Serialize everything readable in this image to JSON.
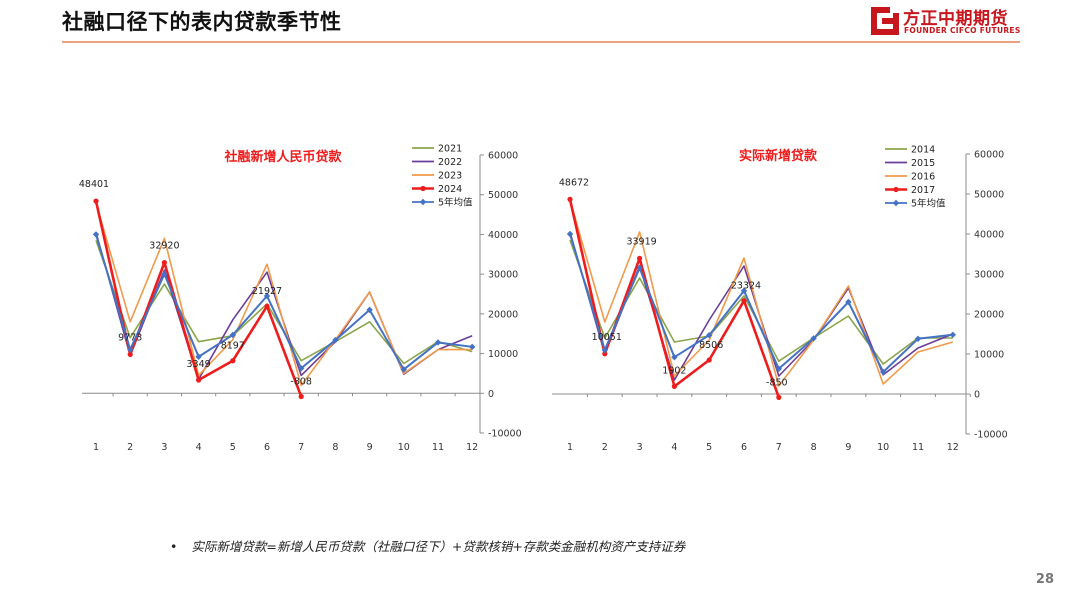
{
  "header": {
    "title": "社融口径下的表内贷款季节性",
    "logo_cn": "方正中期期货",
    "logo_en": "FOUNDER CIFCO FUTURES"
  },
  "chart_data": [
    {
      "type": "line",
      "title": "社融新增人民币贷款",
      "x": [
        1,
        2,
        3,
        4,
        5,
        6,
        7,
        8,
        9,
        10,
        11,
        12
      ],
      "ylim": [
        -10000,
        60000
      ],
      "yticks": [
        -10000,
        0,
        10000,
        20000,
        30000,
        40000,
        50000,
        60000
      ],
      "axis_position": "right",
      "legend_placement": "top-right",
      "grid": false,
      "series": [
        {
          "name": "2021",
          "color": "#8aa54a",
          "values": [
            38500,
            14000,
            27500,
            13000,
            14500,
            22500,
            8200,
            13000,
            18000,
            7500,
            13000,
            10500
          ]
        },
        {
          "name": "2022",
          "color": "#6b3d9a",
          "values": [
            40500,
            9500,
            31000,
            3500,
            18500,
            30500,
            4500,
            13000,
            25500,
            4800,
            11000,
            14500
          ]
        },
        {
          "name": "2023",
          "color": "#f29a4a",
          "values": [
            48000,
            18000,
            39000,
            4500,
            13500,
            32500,
            2000,
            13500,
            25500,
            5000,
            11000,
            11000
          ]
        },
        {
          "name": "2024",
          "color": "#ee1c1c",
          "values": [
            48401,
            9773,
            32920,
            3349,
            8197,
            21927,
            -808,
            null,
            null,
            null,
            null,
            null
          ]
        },
        {
          "name": "5年均值",
          "color": "#4472c4",
          "values": [
            40000,
            11000,
            30000,
            9200,
            14700,
            24500,
            6300,
            13400,
            21000,
            6000,
            12800,
            11700
          ]
        }
      ],
      "data_labels": [
        {
          "x": 1,
          "text": "48401"
        },
        {
          "x": 2,
          "text": "9773"
        },
        {
          "x": 3,
          "text": "32920"
        },
        {
          "x": 4,
          "text": "3349"
        },
        {
          "x": 5,
          "text": "8197"
        },
        {
          "x": 6,
          "text": "21927"
        },
        {
          "x": 7,
          "text": "-808"
        }
      ]
    },
    {
      "type": "line",
      "title": "实际新增贷款",
      "x": [
        1,
        2,
        3,
        4,
        5,
        6,
        7,
        8,
        9,
        10,
        11,
        12
      ],
      "ylim": [
        -10000,
        60000
      ],
      "yticks": [
        -10000,
        0,
        10000,
        20000,
        30000,
        40000,
        50000,
        60000
      ],
      "axis_position": "right",
      "legend_placement": "top-right",
      "grid": false,
      "series": [
        {
          "name": "2014",
          "color": "#8aa54a",
          "values": [
            38500,
            14000,
            29000,
            13000,
            14500,
            24500,
            8200,
            14000,
            19500,
            7500,
            14000,
            14000
          ]
        },
        {
          "name": "2015",
          "color": "#6b3d9a",
          "values": [
            40500,
            10000,
            32000,
            3500,
            18500,
            32000,
            4500,
            13500,
            26500,
            4800,
            11500,
            15000
          ]
        },
        {
          "name": "2016",
          "color": "#f29a4a",
          "values": [
            48500,
            18000,
            40500,
            4500,
            13500,
            34000,
            2000,
            13500,
            27000,
            2500,
            10500,
            13000
          ]
        },
        {
          "name": "2017",
          "color": "#ee1c1c",
          "values": [
            48672,
            10051,
            33919,
            1902,
            8506,
            23324,
            -850,
            null,
            null,
            null,
            null,
            null
          ]
        },
        {
          "name": "5年均值",
          "color": "#4472c4",
          "values": [
            40000,
            11000,
            31500,
            9200,
            14700,
            25800,
            6300,
            13900,
            23000,
            5500,
            13800,
            14800
          ]
        }
      ],
      "data_labels": [
        {
          "x": 1,
          "text": "48672"
        },
        {
          "x": 2,
          "text": "10051"
        },
        {
          "x": 3,
          "text": "33919"
        },
        {
          "x": 4,
          "text": "1902"
        },
        {
          "x": 5,
          "text": "8506"
        },
        {
          "x": 6,
          "text": "23324"
        },
        {
          "x": 7,
          "text": "-850"
        }
      ]
    }
  ],
  "footnote": {
    "bullet": "•",
    "text": "实际新增贷款=新增人民币贷款（社融口径下）+贷款核销+存款类金融机构资产支持证券"
  },
  "page_number": "28"
}
